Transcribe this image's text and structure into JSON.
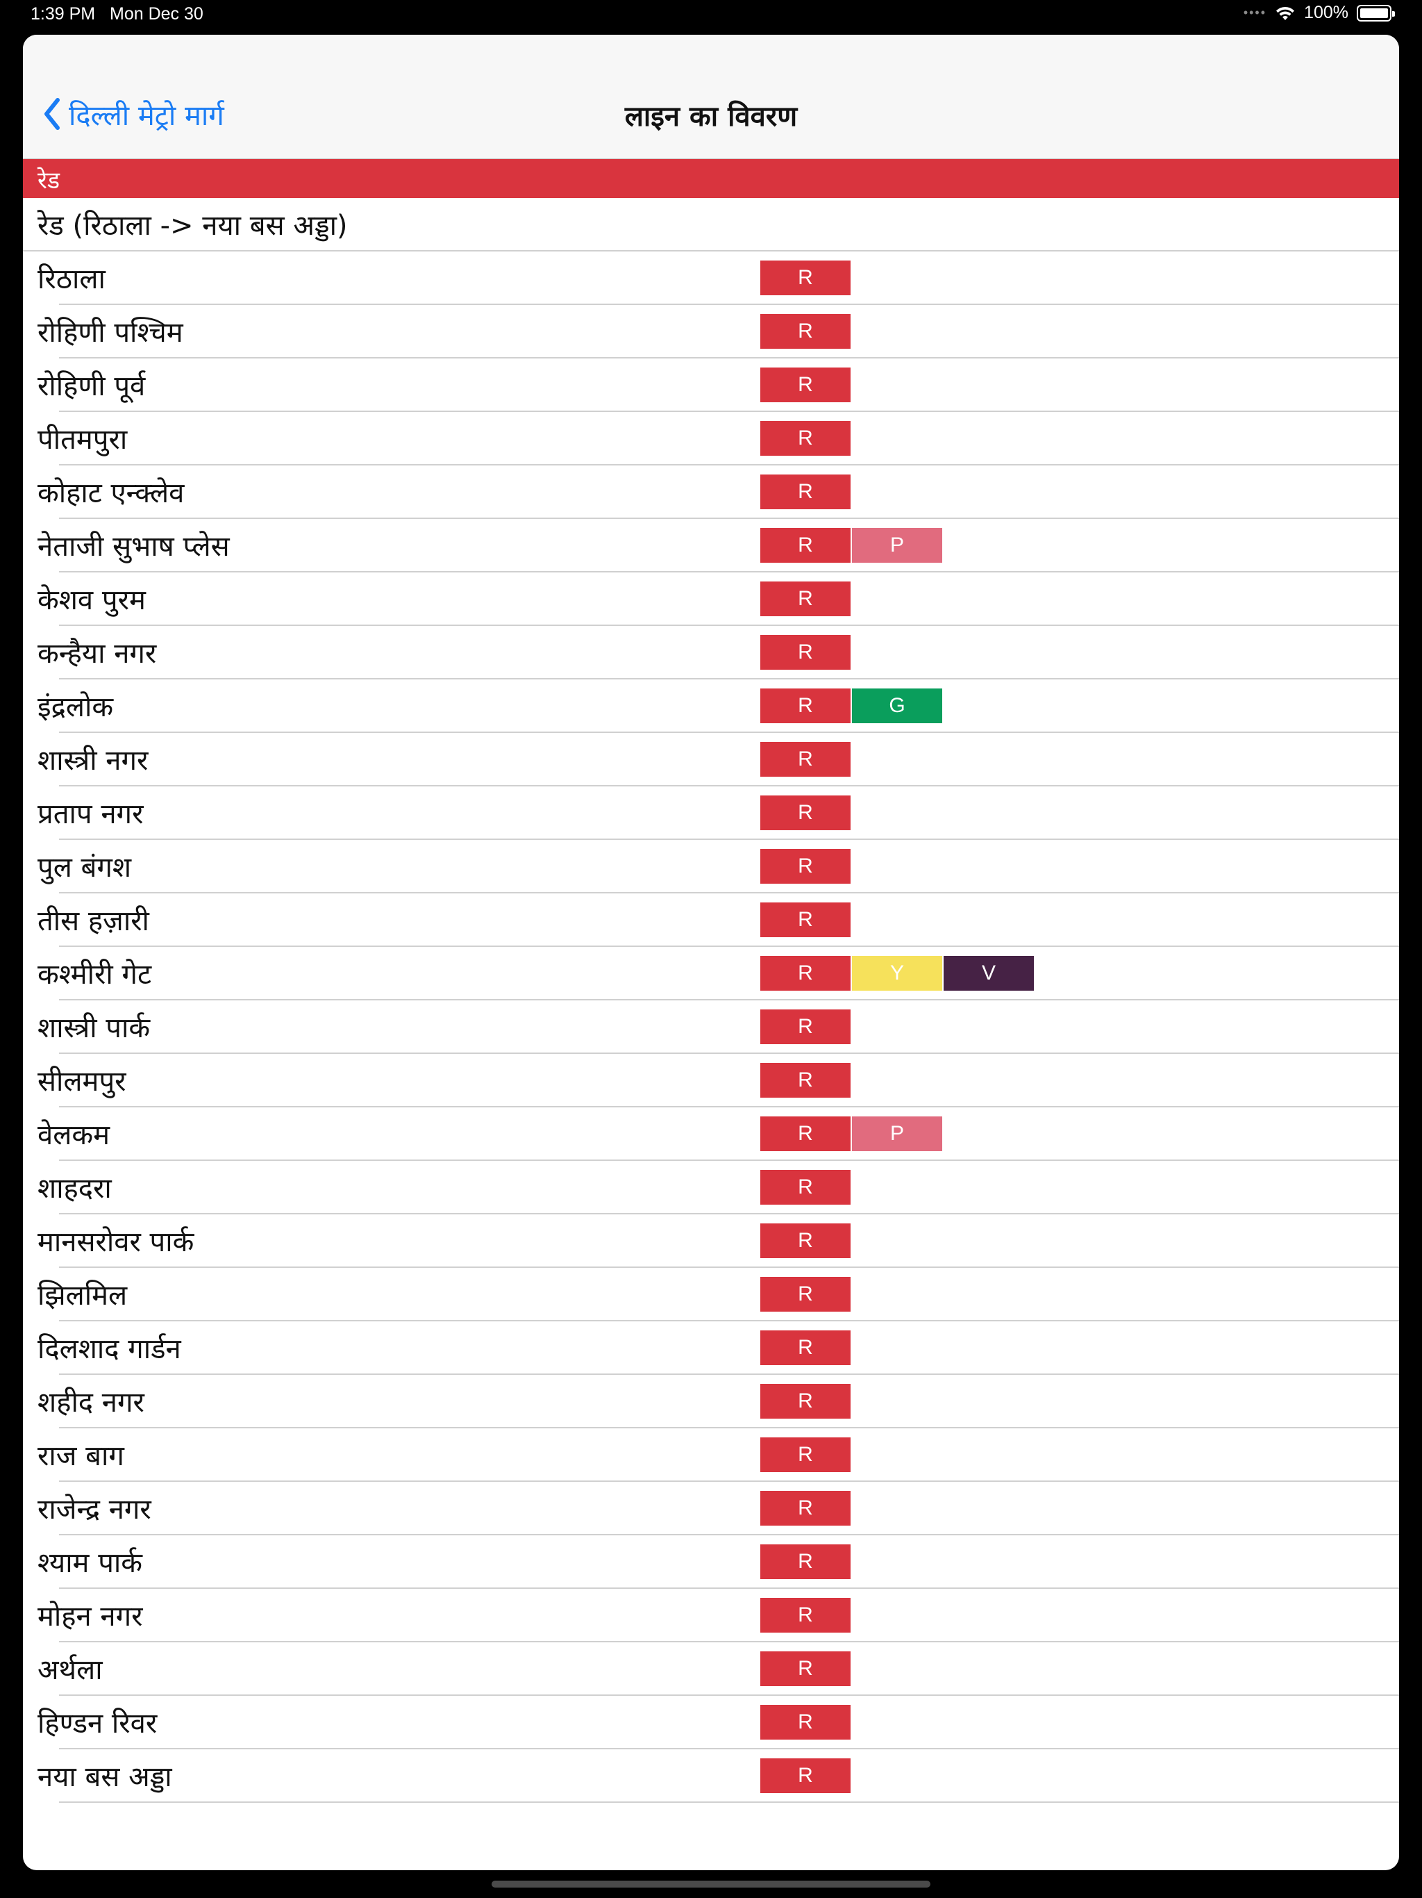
{
  "status_bar": {
    "time": "1:39 PM",
    "date": "Mon Dec 30",
    "battery": "100%"
  },
  "nav": {
    "back_label": "दिल्ली मेट्रो मार्ग",
    "title": "लाइन का विवरण"
  },
  "section": {
    "title": "रेड",
    "color": "#d9343e"
  },
  "route": "रेड (रिठाला -> नया बस अड्डा)",
  "line_colors": {
    "R": {
      "bg": "#d9343e",
      "fg": "#ffffff"
    },
    "P": {
      "bg": "#e16b7e",
      "fg": "#ffffff"
    },
    "G": {
      "bg": "#0a9e5c",
      "fg": "#ffffff"
    },
    "Y": {
      "bg": "#f6e15b",
      "fg": "#ffffff"
    },
    "V": {
      "bg": "#462245",
      "fg": "#ffffff"
    }
  },
  "stations": [
    {
      "name": "रिठाला",
      "lines": [
        "R"
      ]
    },
    {
      "name": "रोहिणी पश्चिम",
      "lines": [
        "R"
      ]
    },
    {
      "name": "रोहिणी पूर्व",
      "lines": [
        "R"
      ]
    },
    {
      "name": "पीतमपुरा",
      "lines": [
        "R"
      ]
    },
    {
      "name": "कोहाट एन्क्लेव",
      "lines": [
        "R"
      ]
    },
    {
      "name": "नेताजी सुभाष प्लेस",
      "lines": [
        "R",
        "P"
      ]
    },
    {
      "name": "केशव पुरम",
      "lines": [
        "R"
      ]
    },
    {
      "name": "कन्हैया नगर",
      "lines": [
        "R"
      ]
    },
    {
      "name": "इंद्रलोक",
      "lines": [
        "R",
        "G"
      ]
    },
    {
      "name": "शास्त्री नगर",
      "lines": [
        "R"
      ]
    },
    {
      "name": "प्रताप नगर",
      "lines": [
        "R"
      ]
    },
    {
      "name": "पुल बंगश",
      "lines": [
        "R"
      ]
    },
    {
      "name": "तीस हज़ारी",
      "lines": [
        "R"
      ]
    },
    {
      "name": "कश्मीरी गेट",
      "lines": [
        "R",
        "Y",
        "V"
      ]
    },
    {
      "name": "शास्त्री पार्क",
      "lines": [
        "R"
      ]
    },
    {
      "name": "सीलमपुर",
      "lines": [
        "R"
      ]
    },
    {
      "name": "वेलकम",
      "lines": [
        "R",
        "P"
      ]
    },
    {
      "name": "शाहदरा",
      "lines": [
        "R"
      ]
    },
    {
      "name": "मानसरोवर पार्क",
      "lines": [
        "R"
      ]
    },
    {
      "name": "झिलमिल",
      "lines": [
        "R"
      ]
    },
    {
      "name": "दिलशाद गार्डन",
      "lines": [
        "R"
      ]
    },
    {
      "name": "शहीद नगर",
      "lines": [
        "R"
      ]
    },
    {
      "name": "राज बाग",
      "lines": [
        "R"
      ]
    },
    {
      "name": "राजेन्द्र नगर",
      "lines": [
        "R"
      ]
    },
    {
      "name": "श्याम पार्क",
      "lines": [
        "R"
      ]
    },
    {
      "name": "मोहन नगर",
      "lines": [
        "R"
      ]
    },
    {
      "name": "अर्थला",
      "lines": [
        "R"
      ]
    },
    {
      "name": "हिण्डन रिवर",
      "lines": [
        "R"
      ]
    },
    {
      "name": "नया बस अड्डा",
      "lines": [
        "R"
      ]
    }
  ]
}
